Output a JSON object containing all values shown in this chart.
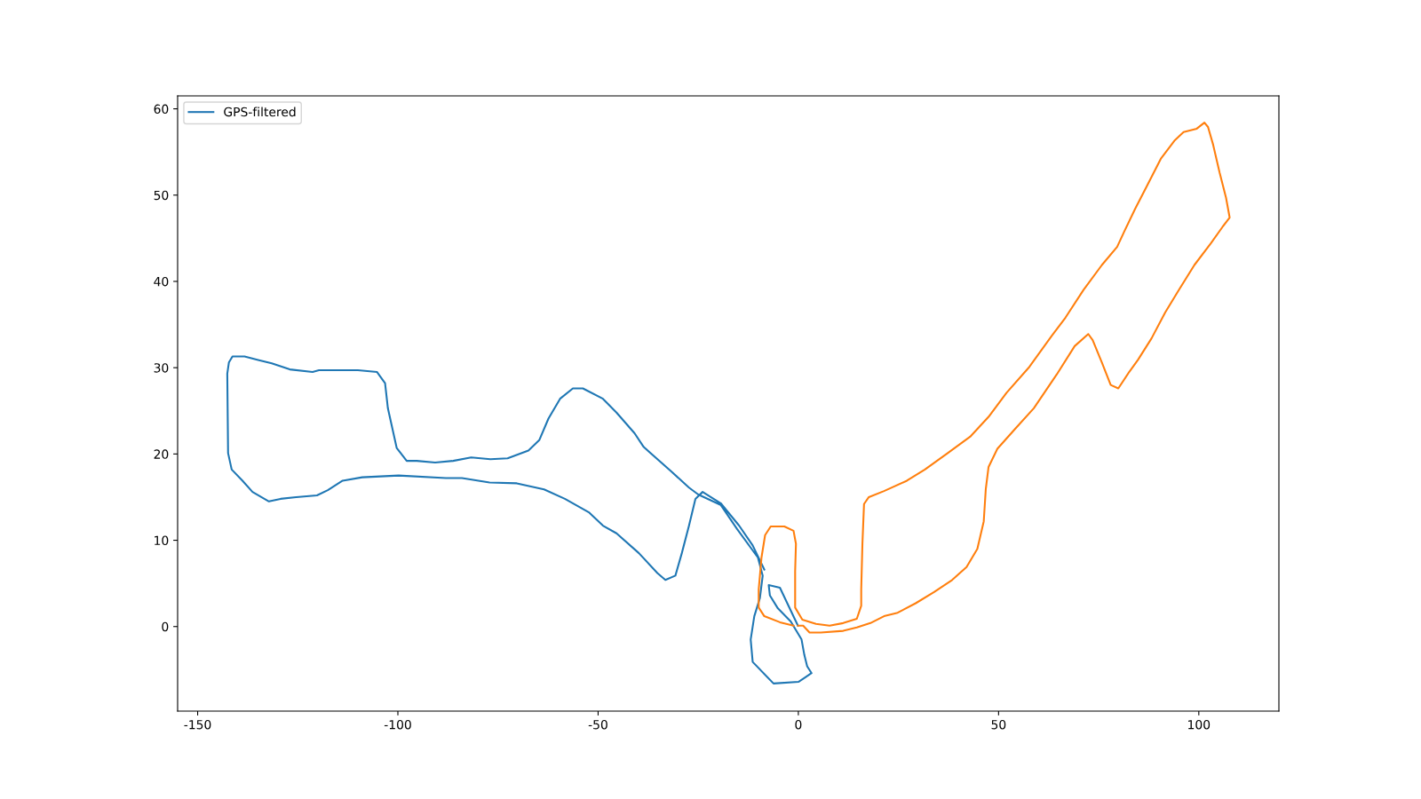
{
  "chart_data": {
    "type": "line",
    "xlim": [
      -155,
      120
    ],
    "ylim": [
      -9.8,
      61.5
    ],
    "xticks": [
      -150,
      -100,
      -50,
      0,
      50,
      100
    ],
    "yticks": [
      0,
      10,
      20,
      30,
      40,
      50,
      60
    ],
    "grid": false,
    "legend": "top left",
    "marker": "none",
    "line_style": "solid",
    "series": [
      {
        "name": "GPS-filtered",
        "color": "#1f77b4",
        "x": [
          -0.1,
          -4.6,
          -7.4,
          -7.1,
          -5.1,
          -1.9,
          0.8,
          1.5,
          2.2,
          3.3,
          0.1,
          -6.2,
          -11.4,
          -11.9,
          -11.0,
          -9.6,
          -8.9,
          -10.1,
          -15.3,
          -19.4,
          -25.0,
          -27.3,
          -31.8,
          -38.6,
          -40.9,
          -45.4,
          -48.8,
          -53.8,
          -56.3,
          -59.5,
          -62.4,
          -64.7,
          -67.4,
          -72.6,
          -76.9,
          -81.7,
          -86.2,
          -90.7,
          -95.3,
          -97.8,
          -100.3,
          -102.5,
          -103.2,
          -105.2,
          -110.0,
          -119.7,
          -121.3,
          -127.0,
          -131.5,
          -134.9,
          -138.3,
          -141.3,
          -142.2,
          -142.6,
          -142.4,
          -141.5,
          -138.8,
          -136.3,
          -132.2,
          -129.3,
          -125.4,
          -120.2,
          -117.5,
          -113.8,
          -108.9,
          -99.8,
          -88.0,
          -84.0,
          -77.1,
          -70.3,
          -63.5,
          -58.3,
          -52.2,
          -48.8,
          -45.4,
          -39.8,
          -35.2,
          -33.2,
          -30.7,
          -29.1,
          -27.3,
          -25.7,
          -23.9,
          -19.4,
          -14.8,
          -11.4,
          -8.5
        ],
        "values": [
          0.1,
          4.5,
          4.8,
          3.6,
          2.1,
          0.6,
          -1.5,
          -3.3,
          -4.6,
          -5.4,
          -6.4,
          -6.6,
          -4.1,
          -1.5,
          1.2,
          3.3,
          5.9,
          8.0,
          11.3,
          14.1,
          15.3,
          16.1,
          18.0,
          20.8,
          22.4,
          24.8,
          26.4,
          27.6,
          27.6,
          26.4,
          24.1,
          21.6,
          20.4,
          19.5,
          19.4,
          19.6,
          19.2,
          19.0,
          19.2,
          19.2,
          20.7,
          25.3,
          28.2,
          29.5,
          29.7,
          29.7,
          29.5,
          29.8,
          30.5,
          30.9,
          31.3,
          31.3,
          30.6,
          29.3,
          20.1,
          18.2,
          16.9,
          15.6,
          14.5,
          14.8,
          15.0,
          15.2,
          15.8,
          16.9,
          17.3,
          17.5,
          17.2,
          17.2,
          16.7,
          16.6,
          15.9,
          14.8,
          13.2,
          11.7,
          10.8,
          8.5,
          6.2,
          5.4,
          5.9,
          8.5,
          11.7,
          14.8,
          15.6,
          14.3,
          11.7,
          9.4,
          6.6
        ]
      },
      {
        "color": "#ff7f0e",
        "x": [
          -0.1,
          1.2,
          2.8,
          5.6,
          11.2,
          14.6,
          18.0,
          21.4,
          24.8,
          29.3,
          33.9,
          38.4,
          42.0,
          44.7,
          46.3,
          46.8,
          47.5,
          49.7,
          54.3,
          58.8,
          64.5,
          69.0,
          72.4,
          73.5,
          75.8,
          78.0,
          79.9,
          82.6,
          84.8,
          88.2,
          91.6,
          95.0,
          98.9,
          103.0,
          105.9,
          107.7,
          106.8,
          105.2,
          103.6,
          102.3,
          101.4,
          99.5,
          96.2,
          93.9,
          90.5,
          87.1,
          84.1,
          81.4,
          79.6,
          75.8,
          71.2,
          66.7,
          63.3,
          57.7,
          52.0,
          47.5,
          42.9,
          37.3,
          31.6,
          27.1,
          21.4,
          17.6,
          16.4,
          16.0,
          15.7,
          15.7,
          14.6,
          11.2,
          7.8,
          4.4,
          1.0,
          -0.8,
          -0.8,
          -0.6,
          -1.2,
          -3.5,
          -6.9,
          -8.3,
          -9.2,
          -9.9,
          -9.9,
          -8.5,
          -4.6,
          -1.2
        ],
        "values": [
          0.1,
          0.1,
          -0.7,
          -0.7,
          -0.5,
          -0.1,
          0.4,
          1.2,
          1.6,
          2.7,
          4.0,
          5.4,
          6.9,
          9.0,
          12.2,
          15.9,
          18.5,
          20.6,
          23.0,
          25.3,
          29.2,
          32.5,
          33.9,
          33.2,
          30.6,
          28.0,
          27.6,
          29.5,
          30.9,
          33.4,
          36.4,
          39.0,
          41.9,
          44.4,
          46.3,
          47.4,
          49.7,
          52.6,
          55.8,
          57.9,
          58.4,
          57.7,
          57.3,
          56.3,
          54.2,
          51.1,
          48.4,
          45.8,
          44.0,
          41.9,
          39.0,
          35.8,
          33.7,
          30.1,
          27.1,
          24.3,
          22.0,
          20.1,
          18.2,
          16.9,
          15.7,
          15.0,
          14.2,
          9.6,
          4.3,
          2.4,
          0.9,
          0.4,
          0.1,
          0.3,
          0.8,
          2.2,
          6.4,
          9.6,
          11.1,
          11.6,
          11.6,
          10.6,
          8.0,
          4.3,
          2.2,
          1.2,
          0.5,
          0.1
        ]
      }
    ]
  }
}
